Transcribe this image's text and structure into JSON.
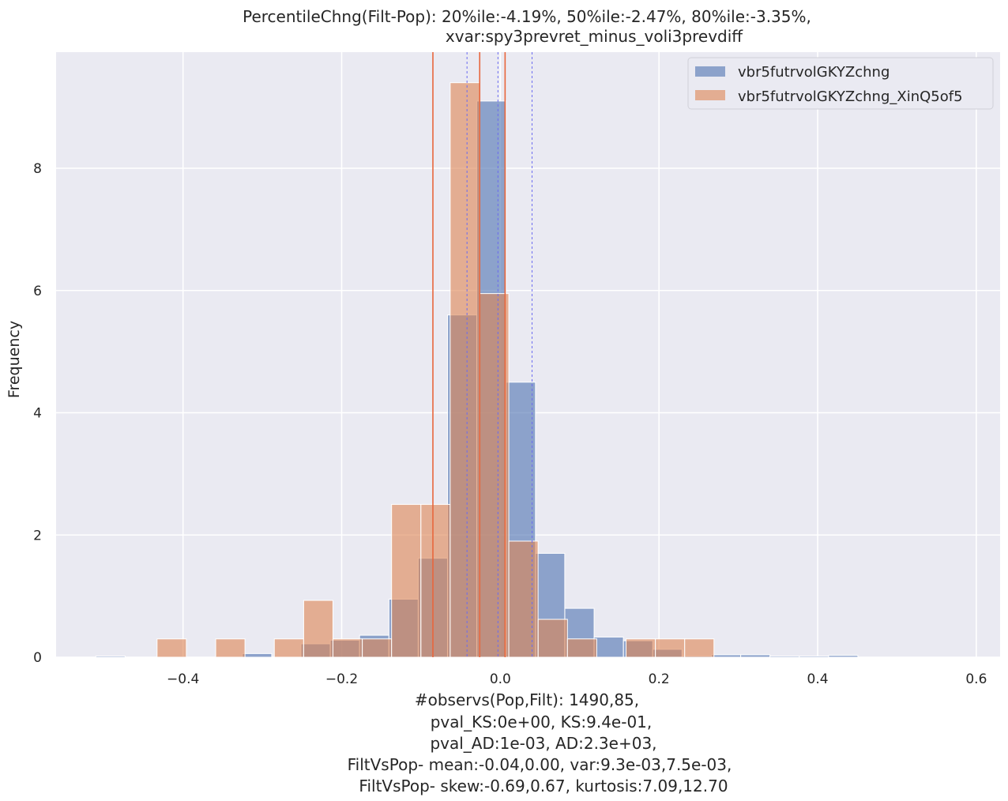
{
  "chart_data": {
    "type": "bar",
    "title_lines": [
      "PercentileChng(Filt-Pop):  20%ile:-4.19%, 50%ile:-2.47%, 80%ile:-3.35%,",
      "xvar:spy3prevret_minus_voli3prevdiff"
    ],
    "xlabel": "",
    "ylabel": "Frequency",
    "xlim": [
      -0.56,
      0.63
    ],
    "ylim": [
      0,
      9.9
    ],
    "x_ticks": [
      -0.4,
      -0.2,
      0.0,
      0.2,
      0.4,
      0.6
    ],
    "x_tick_labels": [
      "−0.4",
      "−0.2",
      "0.0",
      "0.2",
      "0.4",
      "0.6"
    ],
    "y_ticks": [
      0,
      2,
      4,
      6,
      8
    ],
    "y_tick_labels": [
      "0",
      "2",
      "4",
      "6",
      "8"
    ],
    "grid": true,
    "legend_position": "top-right",
    "series": [
      {
        "name": "vbr5futrvolGKYZchng",
        "color": "#4c72b0",
        "opacity": 0.6,
        "bin_width": 0.0369,
        "bin_starts": [
          -0.5099,
          -0.3251,
          -0.2513,
          -0.2143,
          -0.1774,
          -0.1404,
          -0.1035,
          -0.0665,
          -0.0296,
          0.0074,
          0.0443,
          0.0813,
          0.1182,
          0.1552,
          0.1921,
          0.2291,
          0.266,
          0.303,
          0.3399,
          0.3769,
          0.4138
        ],
        "values": [
          0.02,
          0.06,
          0.22,
          0.28,
          0.36,
          0.95,
          1.62,
          5.6,
          9.1,
          4.5,
          1.7,
          0.8,
          0.33,
          0.27,
          0.13,
          0.02,
          0.04,
          0.04,
          0.02,
          0.02,
          0.03
        ]
      },
      {
        "name": "vbr5futrvolGKYZchng_XinQ5of5",
        "color": "#dd8452",
        "opacity": 0.6,
        "bin_width": 0.0369,
        "bin_starts": [
          -0.4327,
          -0.3588,
          -0.2849,
          -0.2479,
          -0.211,
          -0.174,
          -0.1371,
          -0.1001,
          -0.0632,
          -0.0262,
          0.0107,
          0.0477,
          0.0846,
          0.1216,
          0.1585,
          0.1955,
          0.2324
        ],
        "values": [
          0.3,
          0.3,
          0.3,
          0.93,
          0.3,
          0.3,
          2.5,
          2.5,
          9.4,
          5.95,
          1.9,
          0.62,
          0.3,
          0.0,
          0.3,
          0.3,
          0.3
        ]
      }
    ],
    "vlines": [
      {
        "x": -0.085,
        "color": "#e8663c",
        "style": "solid"
      },
      {
        "x": -0.026,
        "color": "#e8663c",
        "style": "solid"
      },
      {
        "x": 0.006,
        "color": "#e8663c",
        "style": "solid"
      },
      {
        "x": -0.042,
        "color": "#6b6bf0",
        "style": "dashed"
      },
      {
        "x": -0.003,
        "color": "#6b6bf0",
        "style": "dashed"
      },
      {
        "x": 0.04,
        "color": "#6b6bf0",
        "style": "dashed"
      }
    ],
    "stats_lines": [
      "#observs(Pop,Filt): 1490,85,",
      "pval_KS:0e+00, KS:9.4e-01,",
      "pval_AD:1e-03, AD:2.3e+03,",
      "FiltVsPop- mean:-0.04,0.00, var:9.3e-03,7.5e-03,",
      "FiltVsPop- skew:-0.69,0.67, kurtosis:7.09,12.70"
    ]
  }
}
